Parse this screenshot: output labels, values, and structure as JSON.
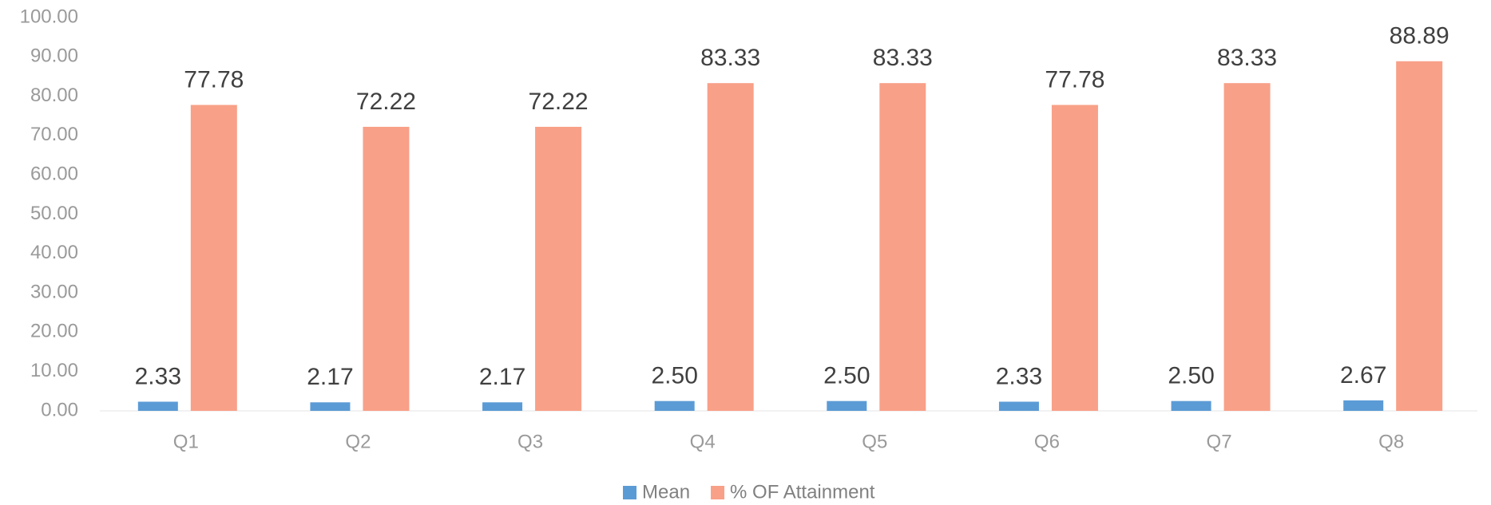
{
  "chart_data": {
    "type": "bar",
    "categories": [
      "Q1",
      "Q2",
      "Q3",
      "Q4",
      "Q5",
      "Q6",
      "Q7",
      "Q8"
    ],
    "series": [
      {
        "name": "Mean",
        "color": "#5b9bd5",
        "values": [
          2.33,
          2.17,
          2.17,
          2.5,
          2.5,
          2.33,
          2.5,
          2.67
        ],
        "value_labels": [
          "2.33",
          "2.17",
          "2.17",
          "2.50",
          "2.50",
          "2.33",
          "2.50",
          "2.67"
        ]
      },
      {
        "name": "% OF Attainment",
        "color": "#f8a088",
        "values": [
          77.78,
          72.22,
          72.22,
          83.33,
          83.33,
          77.78,
          83.33,
          88.89
        ],
        "value_labels": [
          "77.78",
          "72.22",
          "72.22",
          "83.33",
          "83.33",
          "77.78",
          "83.33",
          "88.89"
        ]
      }
    ],
    "ylim": [
      0,
      100
    ],
    "yticks": [
      {
        "value": 0,
        "label": "0.00"
      },
      {
        "value": 10,
        "label": "10.00"
      },
      {
        "value": 20,
        "label": "20.00"
      },
      {
        "value": 30,
        "label": "30.00"
      },
      {
        "value": 40,
        "label": "40.00"
      },
      {
        "value": 50,
        "label": "50.00"
      },
      {
        "value": 60,
        "label": "60.00"
      },
      {
        "value": 70,
        "label": "70.00"
      },
      {
        "value": 80,
        "label": "80.00"
      },
      {
        "value": 90,
        "label": "90.00"
      },
      {
        "value": 100,
        "label": "100.00"
      }
    ],
    "grid": false,
    "legend": "bottom"
  }
}
